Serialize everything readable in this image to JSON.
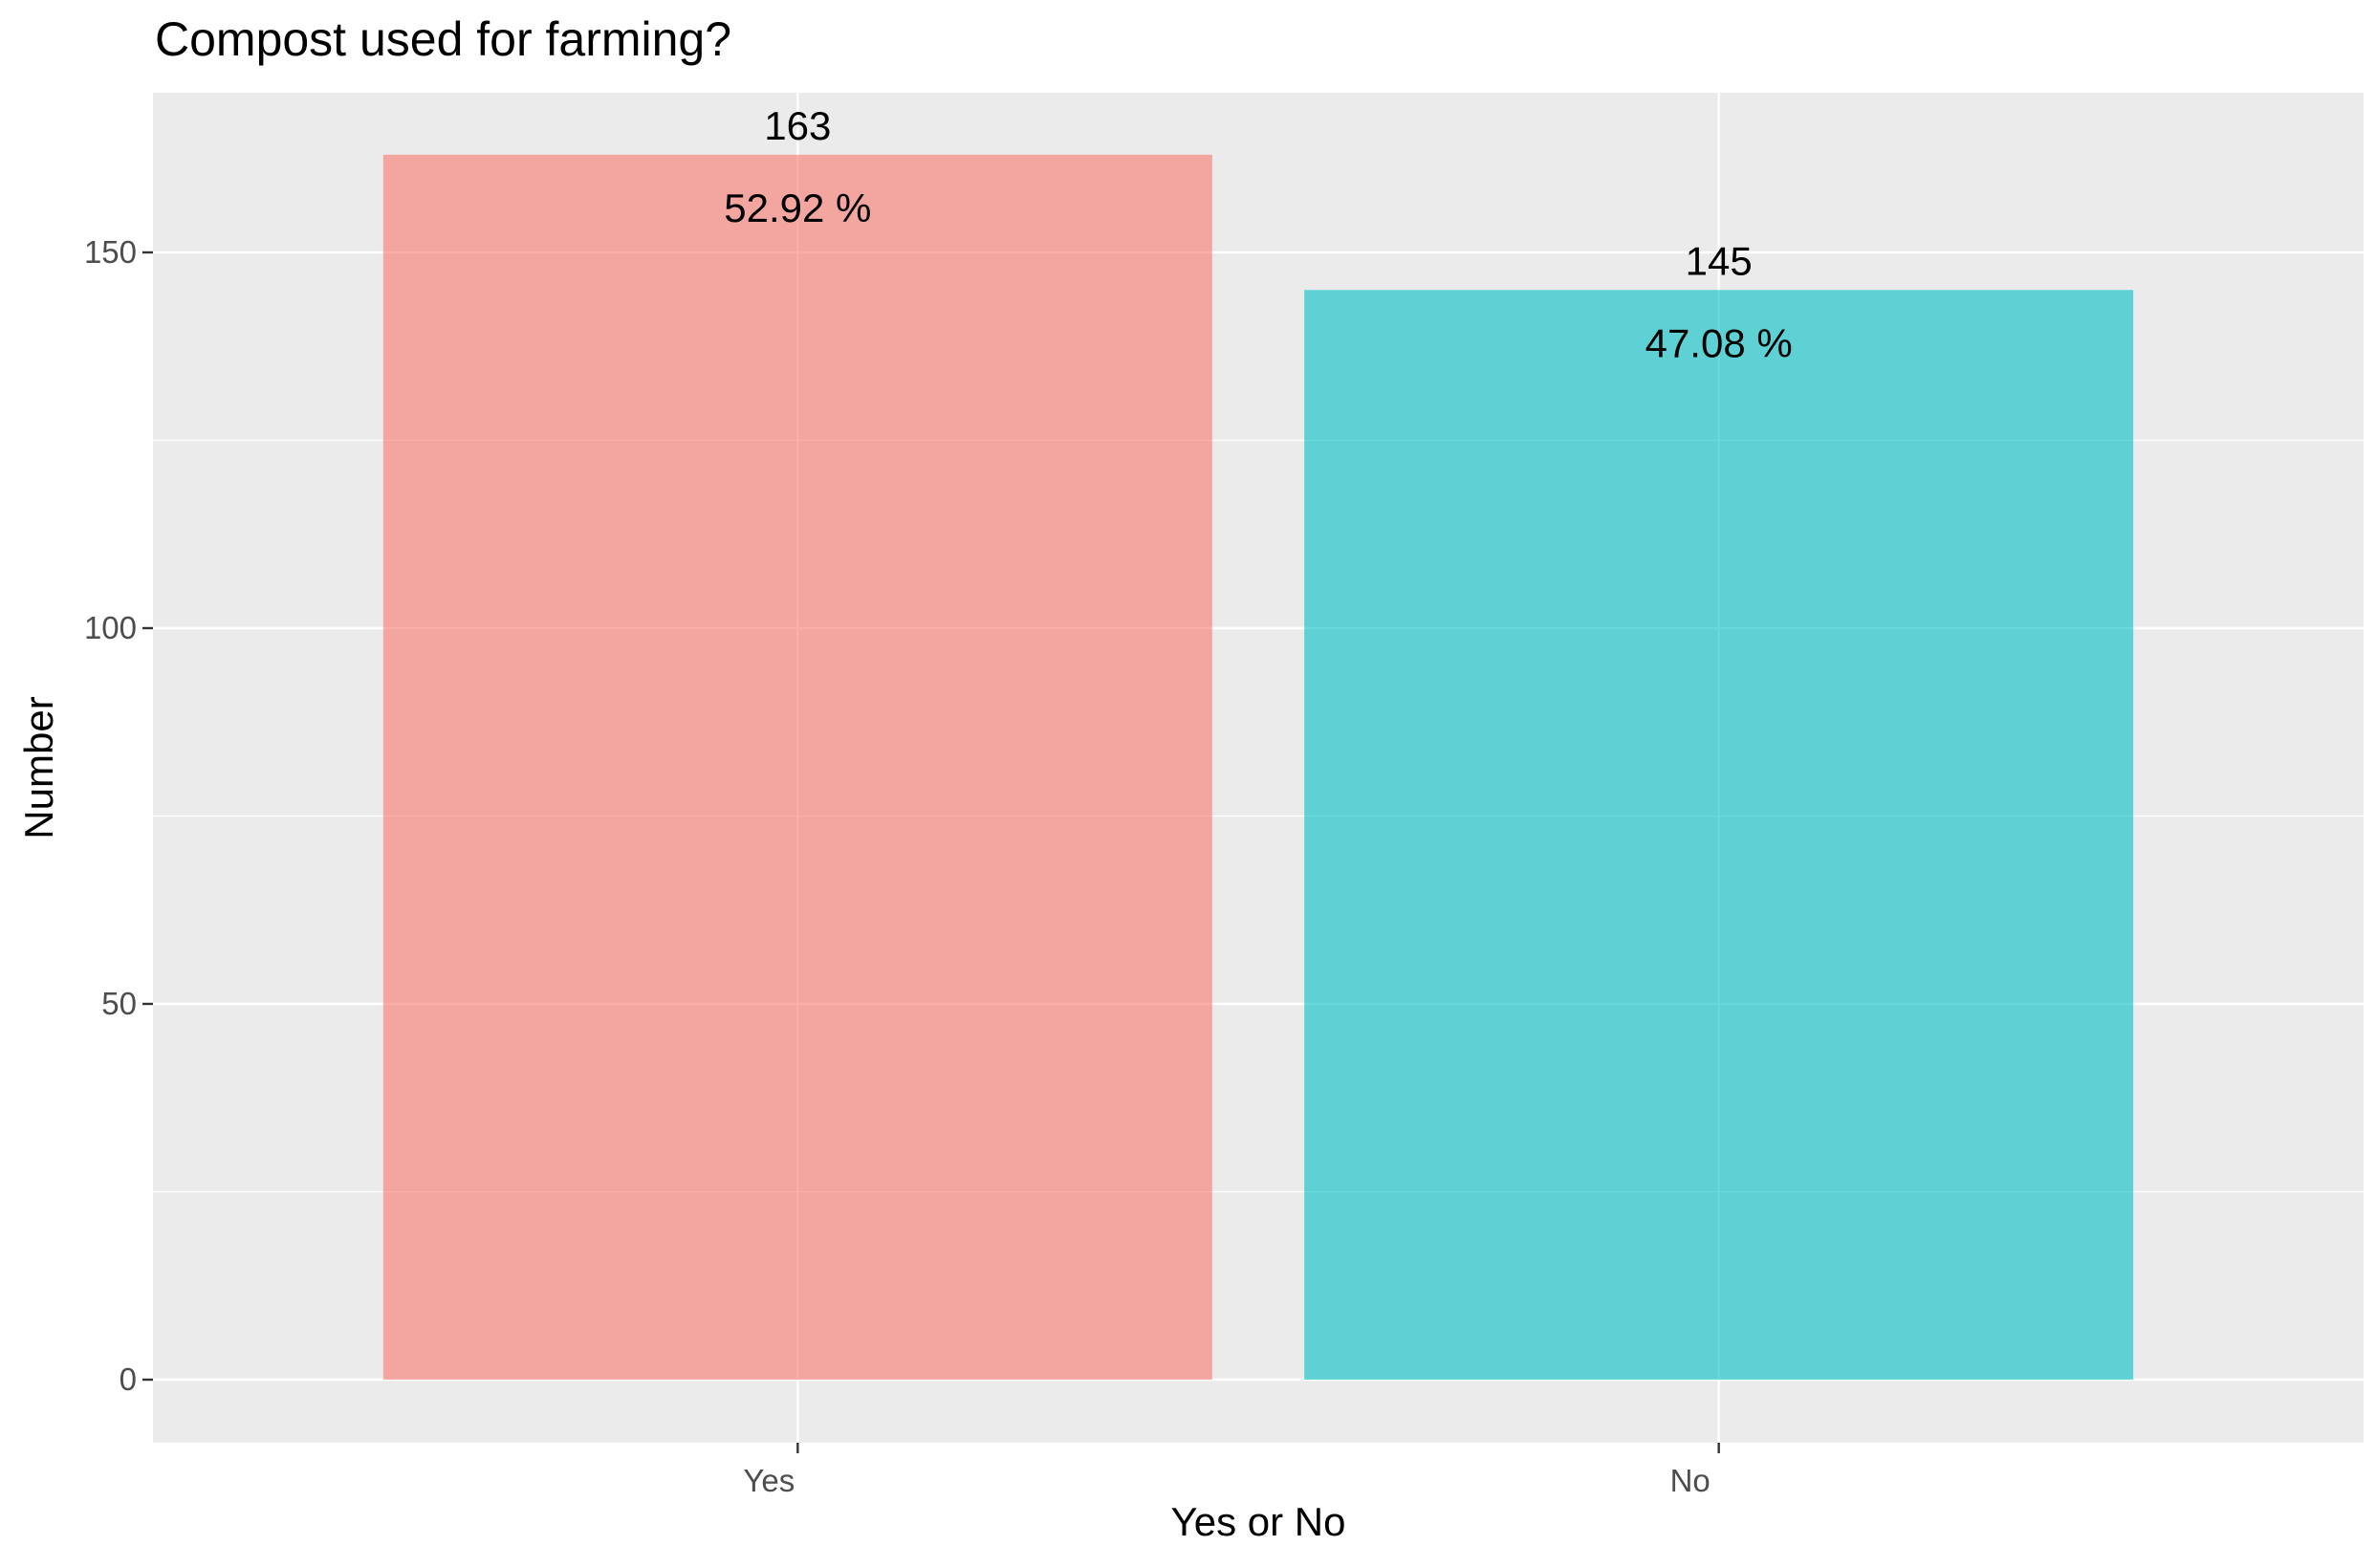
{
  "chart_data": {
    "type": "bar",
    "title": "Compost used for farming?",
    "xlabel": "Yes or No",
    "ylabel": "Number",
    "categories": [
      "Yes",
      "No"
    ],
    "values": [
      163,
      145
    ],
    "percent_labels": [
      "52.92 %",
      "47.08 %"
    ],
    "count_labels": [
      "163",
      "145"
    ],
    "colors": [
      "#F8766D",
      "#00BFC4"
    ],
    "ylim": [
      0,
      163
    ],
    "y_ticks": [
      0,
      50,
      100,
      150
    ],
    "y_tick_labels": [
      "0",
      "50",
      "100",
      "150"
    ],
    "legend": "none",
    "grid": true,
    "panel_background": "#EBEBEB"
  }
}
